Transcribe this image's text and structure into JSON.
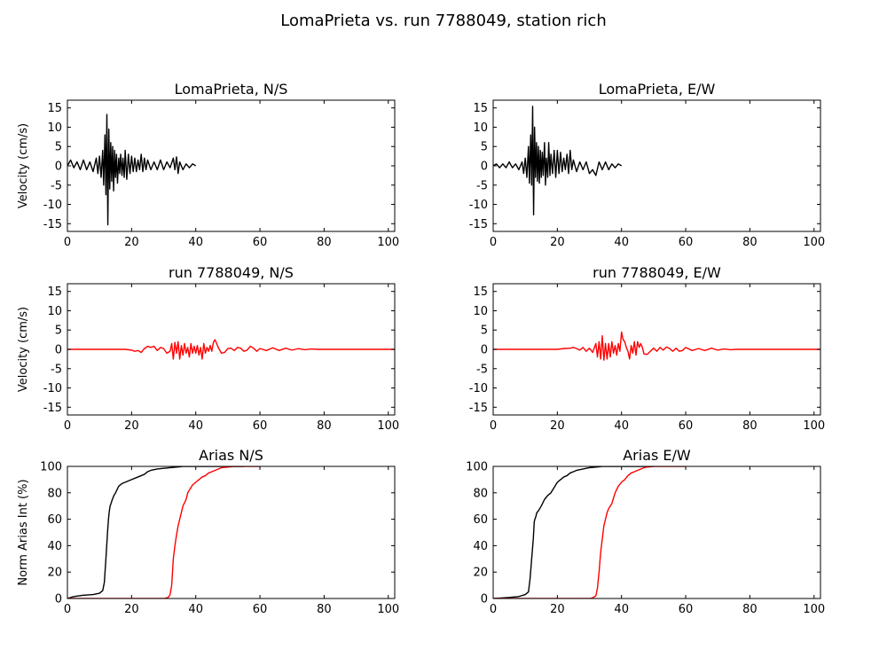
{
  "figure_title": "LomaPrieta vs. run 7788049, station rich",
  "chart_data": [
    {
      "type": "line",
      "title": "LomaPrieta, N/S",
      "xlabel": "",
      "ylabel": "Velocity (cm/s)",
      "xlim": [
        0,
        102
      ],
      "ylim": [
        -17,
        17
      ],
      "xticks": [
        0,
        20,
        40,
        60,
        80,
        100
      ],
      "yticks": [
        -15,
        -10,
        -5,
        0,
        5,
        10,
        15
      ],
      "series": [
        {
          "color": "#000000",
          "x": [
            0,
            1,
            2,
            3,
            4,
            5,
            6,
            7,
            8,
            9,
            9.5,
            10,
            10.5,
            11,
            11.3,
            11.7,
            12,
            12.3,
            12.6,
            12.9,
            13.2,
            13.5,
            13.8,
            14.1,
            14.4,
            14.7,
            15,
            15.3,
            15.6,
            16,
            16.3,
            16.6,
            17,
            17.3,
            17.7,
            18,
            18.5,
            19,
            19.5,
            20,
            20.5,
            21,
            21.5,
            22,
            22.5,
            23,
            23.5,
            24,
            24.5,
            25,
            26,
            27,
            28,
            29,
            30,
            31,
            32,
            33,
            33.5,
            34,
            34.5,
            35,
            36,
            37,
            38,
            39,
            40
          ],
          "y": [
            0,
            1.5,
            -0.5,
            1,
            -1,
            1.5,
            -1,
            1,
            -1.5,
            2,
            -2,
            2.5,
            -3,
            4,
            -5,
            8,
            -7.5,
            13.3,
            -15.3,
            9.5,
            -6,
            6,
            -4,
            5,
            -6.5,
            4,
            -3,
            3,
            -4.5,
            2,
            -2,
            3,
            -2.5,
            2,
            -3,
            4,
            -3.5,
            3,
            -2,
            2.5,
            -1.5,
            2,
            -1.5,
            1.5,
            -1,
            3,
            -1.5,
            2,
            -1,
            1.5,
            -1,
            1,
            -1,
            1.5,
            -1,
            1,
            -0.5,
            2,
            -1,
            2.3,
            -2,
            1,
            -1,
            0.5,
            -0.5,
            0.5,
            0
          ]
        }
      ]
    },
    {
      "type": "line",
      "title": "LomaPrieta, E/W",
      "xlabel": "",
      "ylabel": "",
      "xlim": [
        0,
        102
      ],
      "ylim": [
        -17,
        17
      ],
      "xticks": [
        0,
        20,
        40,
        60,
        80,
        100
      ],
      "yticks": [
        -15,
        -10,
        -5,
        0,
        5,
        10,
        15
      ],
      "series": [
        {
          "color": "#000000",
          "x": [
            0,
            1,
            2,
            3,
            4,
            5,
            6,
            7,
            8,
            9,
            9.5,
            10,
            10.5,
            11,
            11.3,
            11.7,
            12,
            12.3,
            12.6,
            12.9,
            13.2,
            13.5,
            13.8,
            14.1,
            14.4,
            14.7,
            15,
            15.3,
            15.6,
            16,
            16.3,
            16.6,
            17,
            17.3,
            17.7,
            18,
            18.5,
            19,
            19.5,
            20,
            20.5,
            21,
            21.5,
            22,
            22.5,
            23,
            23.5,
            24,
            24.5,
            25,
            26,
            27,
            28,
            29,
            30,
            31,
            32,
            33,
            34,
            35,
            36,
            37,
            38,
            39,
            40
          ],
          "y": [
            0,
            0.5,
            -0.5,
            0.5,
            -0.5,
            1,
            -0.5,
            0.5,
            -1,
            1,
            -2,
            2,
            -3,
            5,
            -4.5,
            8,
            -5,
            15.4,
            -12.7,
            10,
            -3,
            6,
            -4,
            5,
            -4.5,
            4,
            -3,
            3.5,
            -2.5,
            6,
            -5,
            2,
            -3,
            6,
            -2.5,
            3,
            -2,
            4,
            -3,
            4,
            -2,
            3.5,
            -1.5,
            2,
            -1,
            3,
            -2,
            4,
            -1,
            1.5,
            -1.5,
            1,
            -1,
            1,
            -2,
            -1,
            -2.5,
            1,
            -1,
            1,
            -1,
            0.5,
            -0.5,
            0.5,
            0
          ]
        }
      ]
    },
    {
      "type": "line",
      "title": "run 7788049, N/S",
      "xlabel": "",
      "ylabel": "Velocity (cm/s)",
      "xlim": [
        0,
        102
      ],
      "ylim": [
        -17,
        17
      ],
      "xticks": [
        0,
        20,
        40,
        60,
        80,
        100
      ],
      "yticks": [
        -15,
        -10,
        -5,
        0,
        5,
        10,
        15
      ],
      "series": [
        {
          "color": "#ff0000",
          "x": [
            0,
            10,
            18,
            20,
            21,
            22,
            23,
            24,
            25,
            26,
            27,
            28,
            29,
            30,
            31,
            32,
            32.5,
            33,
            33.5,
            34,
            34.5,
            35,
            35.5,
            36,
            36.5,
            37,
            37.5,
            38,
            38.5,
            39,
            39.5,
            40,
            40.5,
            41,
            41.5,
            42,
            42.5,
            43,
            43.5,
            44,
            44.5,
            45,
            45.5,
            46,
            46.5,
            47,
            48,
            49,
            50,
            51,
            52,
            53,
            54,
            55,
            56,
            57,
            58,
            59,
            60,
            62,
            64,
            66,
            68,
            70,
            72,
            74,
            76,
            78,
            80,
            85,
            90,
            95,
            102
          ],
          "y": [
            0,
            0,
            0,
            -0.2,
            -0.5,
            -0.3,
            -0.8,
            0.2,
            0.8,
            0.5,
            0.8,
            -0.3,
            0.5,
            0.2,
            -1,
            -0.5,
            1.5,
            -2.5,
            1.8,
            -1,
            2,
            -2.5,
            1,
            -1.5,
            1.5,
            -1,
            0.5,
            -2,
            1.5,
            -1,
            0.8,
            -1,
            1,
            -1.5,
            0.5,
            -2.5,
            1.5,
            -1,
            0.5,
            -0.5,
            1,
            -0.5,
            1.8,
            2.5,
            1.5,
            0.5,
            -1,
            -0.8,
            0.2,
            0.3,
            -0.3,
            0.5,
            0.3,
            -0.5,
            -0.2,
            0.8,
            0.3,
            -0.5,
            0.2,
            -0.3,
            0.4,
            -0.3,
            0.3,
            -0.2,
            0.2,
            -0.1,
            0.1,
            0,
            0,
            0,
            0,
            0,
            0
          ]
        }
      ]
    },
    {
      "type": "line",
      "title": "run 7788049, E/W",
      "xlabel": "",
      "ylabel": "",
      "xlim": [
        0,
        102
      ],
      "ylim": [
        -17,
        17
      ],
      "xticks": [
        0,
        20,
        40,
        60,
        80,
        100
      ],
      "yticks": [
        -15,
        -10,
        -5,
        0,
        5,
        10,
        15
      ],
      "series": [
        {
          "color": "#ff0000",
          "x": [
            0,
            10,
            20,
            22,
            24,
            25,
            26,
            27,
            28,
            29,
            30,
            31,
            32,
            32.5,
            33,
            33.5,
            34,
            34.5,
            35,
            35.5,
            36,
            36.5,
            37,
            37.5,
            38,
            38.5,
            39,
            39.5,
            40,
            40.5,
            41,
            41.5,
            42,
            42.5,
            43,
            43.5,
            44,
            44.5,
            45,
            45.5,
            46,
            46.5,
            47,
            48,
            49,
            50,
            51,
            52,
            53,
            54,
            55,
            56,
            57,
            58,
            59,
            60,
            62,
            64,
            66,
            68,
            70,
            72,
            74,
            76,
            80,
            85,
            90,
            95,
            102
          ],
          "y": [
            0,
            0,
            0,
            0.2,
            0.3,
            0.5,
            0.2,
            -0.2,
            0.5,
            -0.5,
            0.3,
            -0.8,
            1.5,
            -2,
            2,
            -2.5,
            3.5,
            -2.8,
            1.5,
            -2.5,
            1.5,
            -2,
            2,
            -1,
            1,
            -1.5,
            1.5,
            -0.5,
            4.5,
            2.5,
            2,
            0.5,
            -0.5,
            -2.5,
            1,
            -1,
            2,
            -1.5,
            2,
            0.5,
            1.5,
            0.5,
            -1.2,
            -1.3,
            -0.5,
            0.3,
            -0.5,
            0.5,
            -0.2,
            0.6,
            0.2,
            -0.5,
            0.3,
            -0.5,
            -0.3,
            0.5,
            -0.3,
            0.2,
            -0.3,
            0.3,
            -0.2,
            0.1,
            -0.1,
            0,
            0,
            0,
            0,
            0,
            0
          ]
        }
      ]
    },
    {
      "type": "line",
      "title": "Arias N/S",
      "xlabel": "",
      "ylabel": "Norm Arias Int (%)",
      "xlim": [
        0,
        102
      ],
      "ylim": [
        0,
        100
      ],
      "xticks": [
        0,
        20,
        40,
        60,
        80,
        100
      ],
      "yticks": [
        0,
        20,
        40,
        60,
        80,
        100
      ],
      "series": [
        {
          "color": "#000000",
          "x": [
            0,
            2,
            5,
            8,
            10,
            11,
            11.5,
            12,
            12.5,
            12.8,
            13,
            13.3,
            13.6,
            14,
            14.5,
            15,
            16,
            17,
            18,
            19,
            20,
            22,
            24,
            25,
            26,
            28,
            30,
            32,
            34,
            36,
            38,
            40,
            45,
            50,
            55
          ],
          "y": [
            0,
            1.5,
            2.5,
            3,
            4,
            6,
            12,
            30,
            50,
            60,
            65,
            70,
            72,
            75,
            78,
            80,
            85,
            87,
            88,
            89,
            90,
            92,
            94,
            96,
            97,
            98,
            98.5,
            99,
            99.5,
            100,
            100,
            100,
            100,
            100,
            100
          ]
        },
        {
          "color": "#ff0000",
          "x": [
            0,
            20,
            30,
            31,
            31.5,
            32,
            32.5,
            33,
            33.5,
            34,
            34.5,
            35,
            35.5,
            36,
            37,
            37.5,
            38,
            38.5,
            39,
            40,
            41,
            42,
            43,
            44,
            45,
            46,
            47,
            48,
            50,
            52,
            55,
            60
          ],
          "y": [
            0,
            0,
            0,
            0.5,
            1,
            3,
            10,
            30,
            40,
            48,
            55,
            60,
            65,
            70,
            75,
            80,
            82,
            84,
            86,
            88,
            90,
            92,
            93,
            95,
            96,
            97,
            98,
            99,
            99.5,
            100,
            100,
            100
          ]
        }
      ]
    },
    {
      "type": "line",
      "title": "Arias E/W",
      "xlabel": "",
      "ylabel": "",
      "xlim": [
        0,
        102
      ],
      "ylim": [
        0,
        100
      ],
      "xticks": [
        0,
        20,
        40,
        60,
        80,
        100
      ],
      "yticks": [
        0,
        20,
        40,
        60,
        80,
        100
      ],
      "series": [
        {
          "color": "#000000",
          "x": [
            0,
            2,
            5,
            8,
            10,
            11,
            11.5,
            12,
            12.5,
            12.8,
            13,
            13.3,
            13.6,
            14,
            14.5,
            15,
            16,
            17,
            18,
            19,
            20,
            21,
            22,
            23,
            24,
            25,
            26,
            28,
            30,
            32,
            34,
            36,
            38,
            40,
            45,
            50
          ],
          "y": [
            0,
            0.3,
            0.8,
            1.5,
            3,
            5,
            15,
            30,
            45,
            58,
            60,
            62,
            65,
            66,
            68,
            70,
            75,
            78,
            80,
            84,
            88,
            90,
            92,
            93,
            95,
            96,
            97,
            98,
            99,
            99.5,
            100,
            100,
            100,
            100,
            100,
            100
          ]
        },
        {
          "color": "#ff0000",
          "x": [
            0,
            20,
            30,
            31,
            32,
            32.5,
            33,
            33.5,
            34,
            34.5,
            35,
            35.5,
            36,
            37,
            37.5,
            38,
            39,
            40,
            41,
            42,
            43,
            44,
            45,
            46,
            47,
            48,
            50,
            52,
            55,
            60
          ],
          "y": [
            0,
            0,
            0,
            0.5,
            2,
            8,
            20,
            35,
            45,
            55,
            60,
            65,
            68,
            72,
            76,
            80,
            85,
            88,
            90,
            93,
            95,
            96,
            97,
            98,
            99,
            99.5,
            100,
            100,
            100,
            100
          ]
        }
      ]
    }
  ]
}
